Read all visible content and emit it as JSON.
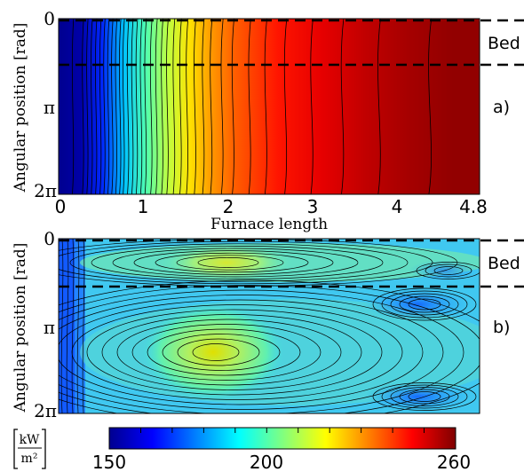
{
  "chart_data": [
    {
      "panel": "a)",
      "type": "heatmap",
      "xlabel": "Furnace length",
      "ylabel": "Angular position [rad]",
      "xlim": [
        0,
        4.8
      ],
      "ylim": [
        "0",
        "2π"
      ],
      "x_ticks": [
        "0",
        "1",
        "2",
        "3",
        "4",
        "4.8"
      ],
      "y_ticks": [
        "0",
        "π",
        "2π"
      ],
      "region_label": "Bed",
      "bed_bounds_rad": [
        0,
        1.5
      ],
      "x": [
        0,
        0.25,
        0.5,
        0.75,
        1,
        1.25,
        1.5,
        1.75,
        2,
        2.5,
        3,
        3.5,
        4,
        4.5,
        4.8
      ],
      "values_kW_m2": [
        150,
        153,
        168,
        185,
        200,
        212,
        222,
        230,
        236,
        244,
        249,
        253,
        256,
        258,
        258
      ]
    },
    {
      "panel": "b)",
      "type": "heatmap",
      "xlabel": "",
      "ylabel": "Angular position [rad]",
      "xlim": [
        0,
        4.8
      ],
      "ylim": [
        "0",
        "2π"
      ],
      "y_ticks": [
        "0",
        "π",
        "2π"
      ],
      "region_label": "Bed",
      "bed_bounds_rad": [
        0,
        1.5
      ],
      "hotspots": [
        {
          "x": 1.8,
          "angle_rad": 0.7,
          "value_kW_m2": 215
        },
        {
          "x": 1.7,
          "angle_rad": 3.9,
          "value_kW_m2": 218
        }
      ],
      "background_value_kW_m2": 190,
      "min_value_kW_m2": 165
    }
  ],
  "colorbar": {
    "unit_numerator": "kW",
    "unit_denominator": "m²",
    "min": 150,
    "max": 260,
    "ticks": [
      "150",
      "200",
      "260"
    ]
  },
  "colors": {
    "stops": [
      "#00008f",
      "#0000ff",
      "#0080ff",
      "#00ffff",
      "#80ff80",
      "#ffff00",
      "#ff8000",
      "#ff0000",
      "#800000"
    ]
  }
}
